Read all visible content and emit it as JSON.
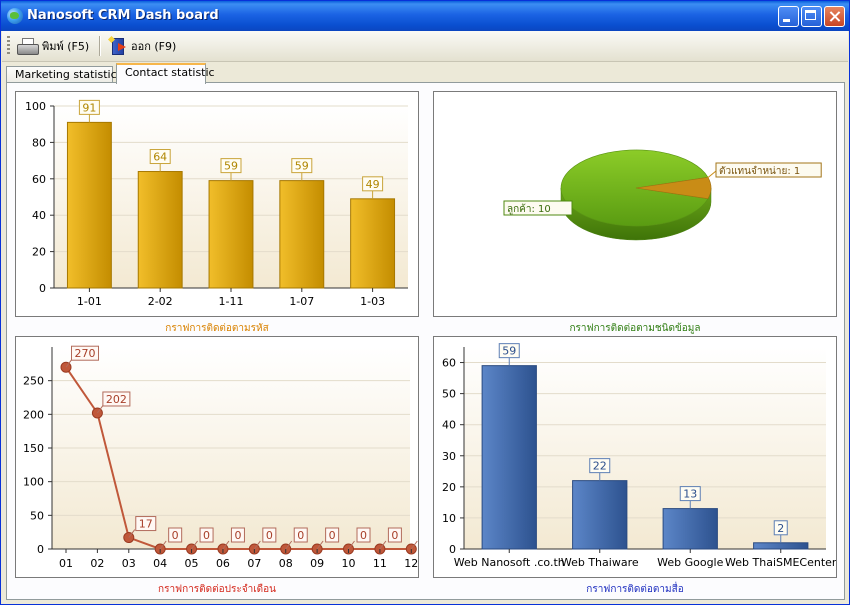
{
  "window": {
    "title": "Nanosoft CRM Dash board"
  },
  "toolbar": {
    "print_label": "พิมพ์ (F5)",
    "exit_label": "ออก (F9)"
  },
  "tabs": [
    {
      "label": "Marketing statistic",
      "selected": false
    },
    {
      "label": "Contact statistic",
      "selected": true
    }
  ],
  "colors": {
    "gold_bar": "#d9a400",
    "pie_green": "#6fb31d",
    "pie_orange": "#c98c16",
    "line_red": "#c0583a",
    "blue_bar": "#3b64a6",
    "caption_orange": "#d98200",
    "caption_green": "#2f7d12",
    "caption_red": "#d4271b",
    "caption_blue": "#1f2fc0"
  },
  "charts": {
    "by_code": {
      "caption": "กราฟการติดต่อตามรหัส",
      "chart_data": {
        "type": "bar",
        "categories": [
          "1-01",
          "2-02",
          "1-11",
          "1-07",
          "1-03"
        ],
        "values": [
          91,
          64,
          59,
          59,
          49
        ],
        "ylim": [
          0,
          100
        ],
        "yticks": [
          0,
          20,
          40,
          60,
          80,
          100
        ]
      }
    },
    "by_type": {
      "caption": "กราฟการติดต่อตามชนิดข้อมูล",
      "chart_data": {
        "type": "pie",
        "slices": [
          {
            "label": "ลูกค้า",
            "value": 10
          },
          {
            "label": "ตัวแทนจำหน่าย",
            "value": 1
          }
        ]
      }
    },
    "by_month": {
      "caption": "กราฟการติดต่อประจำเดือน",
      "chart_data": {
        "type": "line",
        "categories": [
          "01",
          "02",
          "03",
          "04",
          "05",
          "06",
          "07",
          "08",
          "09",
          "10",
          "11",
          "12"
        ],
        "values": [
          270,
          202,
          17,
          0,
          0,
          0,
          0,
          0,
          0,
          0,
          0,
          0
        ],
        "ylim": [
          0,
          300
        ],
        "yticks": [
          0,
          50,
          100,
          150,
          200,
          250
        ]
      }
    },
    "by_media": {
      "caption": "กราฟการติดต่อตามสื่อ",
      "chart_data": {
        "type": "bar",
        "categories": [
          "Web Nanosoft .co.th",
          "Web Thaiware",
          "Web Google",
          "Web ThaiSMECenter"
        ],
        "values": [
          59,
          22,
          13,
          2
        ],
        "ylim": [
          0,
          65
        ],
        "yticks": [
          0,
          10,
          20,
          30,
          40,
          50,
          60
        ]
      }
    }
  }
}
